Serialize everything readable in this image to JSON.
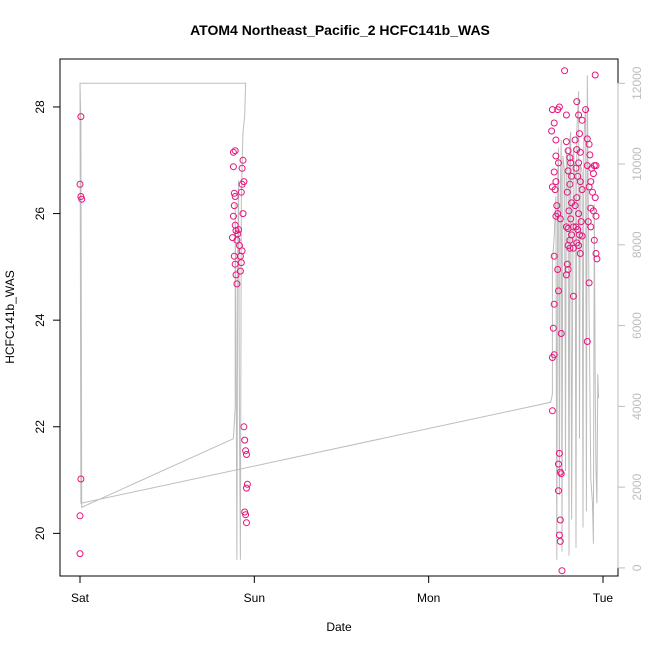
{
  "chart_data": {
    "type": "scatter",
    "title": "ATOM4 Northeast_Pacific_2 HCFC141b_WAS",
    "xlabel": "Date",
    "ylabel": "HCFC141b_WAS",
    "x_ticks": [
      {
        "label": "Sat",
        "day": 0
      },
      {
        "label": "Sun",
        "day": 1
      },
      {
        "label": "Mon",
        "day": 2
      },
      {
        "label": "Tue",
        "day": 3
      }
    ],
    "ylim": [
      19.2,
      28.9
    ],
    "y_ticks": [
      20,
      22,
      24,
      26,
      28
    ],
    "y2lim": [
      -200,
      12600
    ],
    "y2_ticks": [
      0,
      2000,
      4000,
      6000,
      8000,
      10000,
      12000
    ],
    "grid": false,
    "legend": "none",
    "colors": {
      "points": "#e8147c",
      "secondary_line": "#bdbdbd",
      "axis": "#000000"
    },
    "series": [
      {
        "type": "points",
        "axis": "left",
        "points": [
          [
            0.005,
            27.82
          ],
          [
            0.0,
            26.55
          ],
          [
            0.005,
            26.32
          ],
          [
            0.01,
            26.27
          ],
          [
            0.005,
            21.02
          ],
          [
            0.0,
            20.33
          ],
          [
            0.0,
            19.62
          ],
          [
            0.88,
            27.15
          ],
          [
            0.89,
            27.18
          ],
          [
            0.88,
            26.88
          ],
          [
            0.885,
            26.38
          ],
          [
            0.89,
            26.32
          ],
          [
            0.885,
            26.15
          ],
          [
            0.88,
            25.95
          ],
          [
            0.875,
            25.55
          ],
          [
            0.89,
            25.78
          ],
          [
            0.895,
            25.68
          ],
          [
            0.9,
            25.5
          ],
          [
            0.885,
            25.2
          ],
          [
            0.89,
            25.05
          ],
          [
            0.895,
            24.85
          ],
          [
            0.9,
            24.68
          ],
          [
            0.905,
            25.62
          ],
          [
            0.91,
            25.7
          ],
          [
            0.915,
            25.4
          ],
          [
            0.92,
            25.2
          ],
          [
            0.925,
            25.08
          ],
          [
            0.92,
            24.92
          ],
          [
            0.935,
            27.0
          ],
          [
            0.93,
            26.85
          ],
          [
            0.94,
            26.6
          ],
          [
            0.93,
            26.55
          ],
          [
            0.925,
            26.4
          ],
          [
            0.935,
            26.0
          ],
          [
            0.93,
            25.3
          ],
          [
            0.94,
            22.0
          ],
          [
            0.945,
            21.75
          ],
          [
            0.95,
            21.55
          ],
          [
            0.955,
            21.48
          ],
          [
            0.96,
            20.92
          ],
          [
            0.955,
            20.85
          ],
          [
            0.945,
            20.4
          ],
          [
            0.95,
            20.35
          ],
          [
            0.955,
            20.2
          ],
          [
            2.71,
            27.95
          ],
          [
            2.72,
            27.7
          ],
          [
            2.705,
            27.55
          ],
          [
            2.73,
            27.38
          ],
          [
            2.74,
            27.95
          ],
          [
            2.75,
            28.0
          ],
          [
            2.78,
            28.68
          ],
          [
            2.79,
            27.85
          ],
          [
            2.73,
            27.08
          ],
          [
            2.745,
            26.95
          ],
          [
            2.72,
            26.78
          ],
          [
            2.73,
            26.6
          ],
          [
            2.71,
            26.5
          ],
          [
            2.725,
            26.45
          ],
          [
            2.735,
            26.15
          ],
          [
            2.74,
            26.0
          ],
          [
            2.755,
            25.9
          ],
          [
            2.73,
            25.95
          ],
          [
            2.72,
            25.2
          ],
          [
            2.74,
            24.95
          ],
          [
            2.745,
            24.55
          ],
          [
            2.72,
            24.3
          ],
          [
            2.715,
            23.85
          ],
          [
            2.71,
            23.3
          ],
          [
            2.72,
            23.35
          ],
          [
            2.76,
            23.75
          ],
          [
            2.71,
            22.3
          ],
          [
            2.75,
            21.5
          ],
          [
            2.745,
            21.3
          ],
          [
            2.755,
            21.15
          ],
          [
            2.76,
            21.12
          ],
          [
            2.745,
            20.8
          ],
          [
            2.755,
            20.25
          ],
          [
            2.75,
            19.97
          ],
          [
            2.755,
            19.85
          ],
          [
            2.765,
            19.3
          ],
          [
            2.79,
            27.35
          ],
          [
            2.8,
            27.18
          ],
          [
            2.81,
            27.05
          ],
          [
            2.815,
            26.95
          ],
          [
            2.8,
            26.8
          ],
          [
            2.82,
            26.7
          ],
          [
            2.81,
            26.55
          ],
          [
            2.795,
            26.4
          ],
          [
            2.82,
            26.2
          ],
          [
            2.805,
            26.05
          ],
          [
            2.815,
            25.9
          ],
          [
            2.79,
            25.75
          ],
          [
            2.8,
            25.72
          ],
          [
            2.83,
            25.75
          ],
          [
            2.82,
            25.6
          ],
          [
            2.81,
            25.5
          ],
          [
            2.8,
            25.4
          ],
          [
            2.81,
            25.35
          ],
          [
            2.83,
            25.35
          ],
          [
            2.795,
            25.05
          ],
          [
            2.83,
            24.45
          ],
          [
            2.8,
            24.95
          ],
          [
            2.79,
            24.85
          ],
          [
            2.85,
            28.1
          ],
          [
            2.86,
            27.85
          ],
          [
            2.88,
            27.75
          ],
          [
            2.865,
            27.5
          ],
          [
            2.84,
            27.38
          ],
          [
            2.85,
            27.2
          ],
          [
            2.87,
            27.15
          ],
          [
            2.86,
            26.95
          ],
          [
            2.845,
            26.85
          ],
          [
            2.855,
            26.7
          ],
          [
            2.87,
            26.6
          ],
          [
            2.88,
            26.45
          ],
          [
            2.85,
            26.3
          ],
          [
            2.84,
            26.15
          ],
          [
            2.86,
            26.0
          ],
          [
            2.875,
            25.85
          ],
          [
            2.845,
            25.75
          ],
          [
            2.855,
            25.7
          ],
          [
            2.865,
            25.6
          ],
          [
            2.88,
            25.58
          ],
          [
            2.85,
            25.45
          ],
          [
            2.86,
            25.4
          ],
          [
            2.87,
            25.25
          ],
          [
            2.9,
            27.95
          ],
          [
            2.91,
            27.4
          ],
          [
            2.92,
            27.3
          ],
          [
            2.925,
            27.1
          ],
          [
            2.91,
            26.9
          ],
          [
            2.935,
            26.85
          ],
          [
            2.95,
            26.9
          ],
          [
            2.945,
            26.75
          ],
          [
            2.93,
            26.6
          ],
          [
            2.92,
            26.5
          ],
          [
            2.94,
            26.4
          ],
          [
            2.955,
            26.3
          ],
          [
            2.93,
            26.1
          ],
          [
            2.945,
            26.05
          ],
          [
            2.96,
            25.95
          ],
          [
            2.915,
            25.85
          ],
          [
            2.93,
            25.75
          ],
          [
            2.95,
            25.5
          ],
          [
            2.96,
            25.25
          ],
          [
            2.965,
            25.15
          ],
          [
            2.92,
            24.7
          ],
          [
            2.91,
            23.6
          ],
          [
            2.955,
            28.6
          ],
          [
            2.96,
            26.9
          ]
        ]
      },
      {
        "type": "line",
        "axis": "right",
        "points": [
          [
            0.0,
            12000
          ],
          [
            0.005,
            11000
          ],
          [
            0.01,
            1500
          ],
          [
            0.88,
            3200
          ],
          [
            0.89,
            4000
          ],
          [
            0.89,
            9000
          ],
          [
            0.895,
            6000
          ],
          [
            0.9,
            200
          ],
          [
            0.905,
            8000
          ],
          [
            0.91,
            9600
          ],
          [
            0.915,
            3500
          ],
          [
            0.92,
            200
          ],
          [
            0.925,
            9000
          ],
          [
            0.93,
            10000
          ],
          [
            0.935,
            10800
          ],
          [
            0.94,
            11000
          ],
          [
            0.945,
            11200
          ],
          [
            0.95,
            12000
          ],
          [
            0.0,
            12000
          ],
          [
            0.005,
            1600
          ],
          [
            2.7,
            4100
          ],
          [
            2.71,
            4300
          ],
          [
            2.71,
            7600
          ],
          [
            2.72,
            8200
          ],
          [
            2.73,
            9200
          ],
          [
            2.735,
            200
          ],
          [
            2.74,
            9600
          ],
          [
            2.745,
            10400
          ],
          [
            2.75,
            1800
          ],
          [
            2.755,
            9400
          ],
          [
            2.76,
            10600
          ],
          [
            2.765,
            400
          ],
          [
            2.77,
            10200
          ],
          [
            2.78,
            9800
          ],
          [
            2.785,
            2400
          ],
          [
            2.79,
            10400
          ],
          [
            2.8,
            9800
          ],
          [
            2.805,
            300
          ],
          [
            2.81,
            10600
          ],
          [
            2.815,
            10800
          ],
          [
            2.82,
            1200
          ],
          [
            2.83,
            10400
          ],
          [
            2.84,
            9600
          ],
          [
            2.845,
            500
          ],
          [
            2.85,
            10800
          ],
          [
            2.86,
            11800
          ],
          [
            2.865,
            3200
          ],
          [
            2.87,
            10000
          ],
          [
            2.88,
            9800
          ],
          [
            2.885,
            1000
          ],
          [
            2.89,
            10600
          ],
          [
            2.9,
            11400
          ],
          [
            2.905,
            1400
          ],
          [
            2.91,
            12200
          ],
          [
            2.92,
            6400
          ],
          [
            2.93,
            2200
          ],
          [
            2.94,
            1600
          ],
          [
            2.945,
            600
          ],
          [
            2.95,
            9000
          ],
          [
            2.955,
            4600
          ],
          [
            2.96,
            2400
          ],
          [
            2.965,
            1600
          ],
          [
            2.97,
            4800
          ],
          [
            2.975,
            4200
          ]
        ]
      }
    ]
  }
}
